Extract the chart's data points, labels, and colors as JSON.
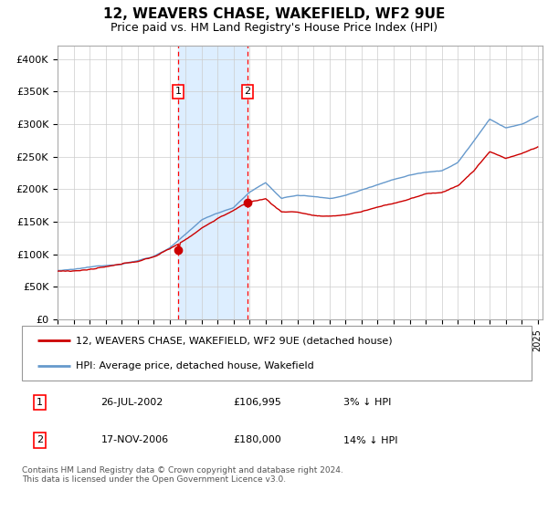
{
  "title": "12, WEAVERS CHASE, WAKEFIELD, WF2 9UE",
  "subtitle": "Price paid vs. HM Land Registry's House Price Index (HPI)",
  "ylim": [
    0,
    420000
  ],
  "yticks": [
    0,
    50000,
    100000,
    150000,
    200000,
    250000,
    300000,
    350000,
    400000
  ],
  "ytick_labels": [
    "£0",
    "£50K",
    "£100K",
    "£150K",
    "£200K",
    "£250K",
    "£300K",
    "£350K",
    "£400K"
  ],
  "red_line_color": "#cc0000",
  "blue_line_color": "#6699cc",
  "shaded_color": "#ddeeff",
  "grid_color": "#cccccc",
  "marker1_value": 106995,
  "marker2_value": 180000,
  "legend_label_red": "12, WEAVERS CHASE, WAKEFIELD, WF2 9UE (detached house)",
  "legend_label_blue": "HPI: Average price, detached house, Wakefield",
  "table_rows": [
    {
      "num": "1",
      "date": "26-JUL-2002",
      "price": "£106,995",
      "pct": "3% ↓ HPI"
    },
    {
      "num": "2",
      "date": "17-NOV-2006",
      "price": "£180,000",
      "pct": "14% ↓ HPI"
    }
  ],
  "footer": "Contains HM Land Registry data © Crown copyright and database right 2024.\nThis data is licensed under the Open Government Licence v3.0."
}
